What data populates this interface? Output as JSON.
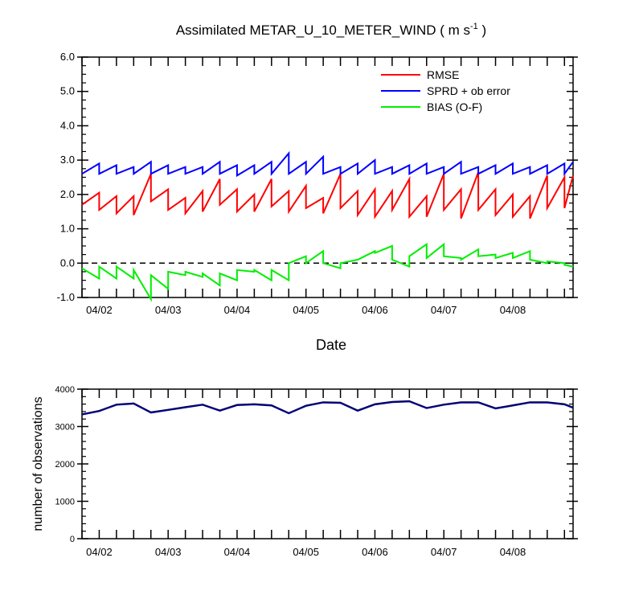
{
  "title": {
    "prefix": "Assimilated METAR_U_10_METER_WIND ( m s",
    "sup": "-1",
    "suffix": " )"
  },
  "colors": {
    "rmse": "#ff0000",
    "sprd": "#0000ff",
    "bias": "#00ee00",
    "obs_possible": "#000000",
    "obs_used": "#00008b",
    "zero_line": "#000000"
  },
  "chart_data": [
    {
      "type": "line",
      "title": "Assimilated METAR_U_10_METER_WIND ( m s-1 )",
      "xlabel": "Date",
      "ylabel": "",
      "ylim": [
        -1.0,
        6.0
      ],
      "yticks": [
        "-1.0",
        "0.0",
        "1.0",
        "2.0",
        "3.0",
        "4.0",
        "5.0",
        "6.0"
      ],
      "xticks": [
        "04/02",
        "04/03",
        "04/04",
        "04/05",
        "04/06",
        "04/07",
        "04/08"
      ],
      "xlim": [
        0.75,
        7.875
      ],
      "legend_position": "top-right",
      "zero_line": "dashed",
      "series": [
        {
          "name": "RMSE",
          "x": [
            0.75,
            1.0,
            1.0,
            1.25,
            1.25,
            1.5,
            1.5,
            1.75,
            1.75,
            2.0,
            2.0,
            2.25,
            2.25,
            2.5,
            2.5,
            2.75,
            2.75,
            3.0,
            3.0,
            3.25,
            3.25,
            3.5,
            3.5,
            3.75,
            3.75,
            4.0,
            4.0,
            4.25,
            4.25,
            4.5,
            4.5,
            4.75,
            4.75,
            5.0,
            5.0,
            5.25,
            5.25,
            5.5,
            5.5,
            5.75,
            5.75,
            6.0,
            6.0,
            6.25,
            6.25,
            6.5,
            6.5,
            6.75,
            6.75,
            7.0,
            7.0,
            7.25,
            7.25,
            7.5,
            7.5,
            7.75,
            7.75,
            7.875
          ],
          "values": [
            1.7,
            2.05,
            1.55,
            1.95,
            1.45,
            1.95,
            1.4,
            2.6,
            1.8,
            2.15,
            1.55,
            1.9,
            1.45,
            2.1,
            1.5,
            2.45,
            1.7,
            2.15,
            1.5,
            2.0,
            1.5,
            2.45,
            1.65,
            2.1,
            1.5,
            2.25,
            1.6,
            1.9,
            1.45,
            2.6,
            1.6,
            2.1,
            1.4,
            2.15,
            1.35,
            2.1,
            1.55,
            2.45,
            1.35,
            1.95,
            1.35,
            2.6,
            1.55,
            2.15,
            1.3,
            2.65,
            1.55,
            2.15,
            1.4,
            2.0,
            1.35,
            1.95,
            1.3,
            2.55,
            1.6,
            2.5,
            1.6,
            2.55
          ]
        },
        {
          "name": "SPRD + ob error",
          "x": [
            0.75,
            1.0,
            1.0,
            1.25,
            1.25,
            1.5,
            1.5,
            1.75,
            1.75,
            2.0,
            2.0,
            2.25,
            2.25,
            2.5,
            2.5,
            2.75,
            2.75,
            3.0,
            3.0,
            3.25,
            3.25,
            3.5,
            3.5,
            3.75,
            3.75,
            4.0,
            4.0,
            4.25,
            4.25,
            4.5,
            4.5,
            4.75,
            4.75,
            5.0,
            5.0,
            5.25,
            5.25,
            5.5,
            5.5,
            5.75,
            5.75,
            6.0,
            6.0,
            6.25,
            6.25,
            6.5,
            6.5,
            6.75,
            6.75,
            7.0,
            7.0,
            7.25,
            7.25,
            7.5,
            7.5,
            7.75,
            7.75,
            7.875
          ],
          "values": [
            2.6,
            2.9,
            2.6,
            2.85,
            2.6,
            2.8,
            2.6,
            2.95,
            2.6,
            2.85,
            2.6,
            2.8,
            2.6,
            2.8,
            2.6,
            2.95,
            2.6,
            2.85,
            2.55,
            2.85,
            2.6,
            2.95,
            2.6,
            3.2,
            2.6,
            2.95,
            2.6,
            3.1,
            2.6,
            2.8,
            2.6,
            2.9,
            2.6,
            3.0,
            2.6,
            2.8,
            2.6,
            2.85,
            2.6,
            2.9,
            2.6,
            2.8,
            2.6,
            2.95,
            2.6,
            2.8,
            2.6,
            2.85,
            2.6,
            2.9,
            2.6,
            2.8,
            2.6,
            2.85,
            2.6,
            2.9,
            2.6,
            2.95
          ]
        },
        {
          "name": "BIAS (O-F)",
          "x": [
            0.75,
            1.0,
            1.0,
            1.25,
            1.25,
            1.5,
            1.5,
            1.75,
            1.75,
            2.0,
            2.0,
            2.25,
            2.25,
            2.5,
            2.5,
            2.75,
            2.75,
            3.0,
            3.0,
            3.25,
            3.25,
            3.5,
            3.5,
            3.75,
            3.75,
            4.0,
            4.0,
            4.25,
            4.25,
            4.5,
            4.5,
            4.75,
            4.75,
            5.0,
            5.0,
            5.25,
            5.25,
            5.5,
            5.5,
            5.75,
            5.75,
            6.0,
            6.0,
            6.25,
            6.25,
            6.5,
            6.5,
            6.75,
            6.75,
            7.0,
            7.0,
            7.25,
            7.25,
            7.5,
            7.5,
            7.75,
            7.75,
            7.875
          ],
          "values": [
            -0.15,
            -0.45,
            -0.1,
            -0.45,
            -0.1,
            -0.45,
            -0.2,
            -1.05,
            -0.35,
            -0.75,
            -0.25,
            -0.35,
            -0.25,
            -0.4,
            -0.3,
            -0.65,
            -0.3,
            -0.5,
            -0.2,
            -0.25,
            -0.2,
            -0.5,
            -0.2,
            -0.5,
            0.0,
            0.2,
            0.0,
            0.35,
            0.0,
            -0.15,
            0.0,
            0.1,
            0.1,
            0.35,
            0.3,
            0.5,
            0.1,
            -0.1,
            0.2,
            0.55,
            0.15,
            0.55,
            0.2,
            0.15,
            0.1,
            0.4,
            0.2,
            0.25,
            0.15,
            0.3,
            0.15,
            0.35,
            0.1,
            0.0,
            0.05,
            0.0,
            -0.05,
            -0.1
          ]
        }
      ]
    },
    {
      "type": "line",
      "title": "",
      "xlabel": "",
      "ylabel": "number of observations",
      "ylim": [
        0,
        4000
      ],
      "yticks": [
        "0",
        "1000",
        "2000",
        "3000",
        "4000"
      ],
      "xticks": [
        "04/02",
        "04/03",
        "04/04",
        "04/05",
        "04/06",
        "04/07",
        "04/08"
      ],
      "xlim": [
        0.75,
        7.875
      ],
      "series": [
        {
          "x": [
            0.75,
            1.0,
            1.25,
            1.5,
            1.75,
            2.0,
            2.25,
            2.5,
            2.75,
            3.0,
            3.25,
            3.5,
            3.75,
            4.0,
            4.25,
            4.5,
            4.75,
            5.0,
            5.25,
            5.5,
            5.75,
            6.0,
            6.25,
            6.5,
            6.75,
            7.0,
            7.25,
            7.5,
            7.75,
            7.875
          ],
          "values": [
            3330,
            3420,
            3590,
            3620,
            3380,
            3450,
            3520,
            3590,
            3430,
            3580,
            3600,
            3570,
            3360,
            3560,
            3650,
            3640,
            3430,
            3600,
            3660,
            3680,
            3500,
            3590,
            3650,
            3650,
            3490,
            3570,
            3650,
            3650,
            3600,
            3510
          ]
        },
        {
          "x": [
            0.75,
            1.0,
            1.25,
            1.5,
            1.75,
            2.0,
            2.25,
            2.5,
            2.75,
            3.0,
            3.25,
            3.5,
            3.75,
            4.0,
            4.25,
            4.5,
            4.75,
            5.0,
            5.25,
            5.5,
            5.75,
            6.0,
            6.25,
            6.5,
            6.75,
            7.0,
            7.25,
            7.5,
            7.75,
            7.875
          ],
          "values": [
            3320,
            3410,
            3580,
            3610,
            3370,
            3440,
            3510,
            3580,
            3420,
            3570,
            3590,
            3560,
            3350,
            3550,
            3640,
            3630,
            3420,
            3590,
            3650,
            3670,
            3490,
            3580,
            3640,
            3640,
            3480,
            3560,
            3640,
            3640,
            3590,
            3500
          ]
        }
      ]
    }
  ]
}
